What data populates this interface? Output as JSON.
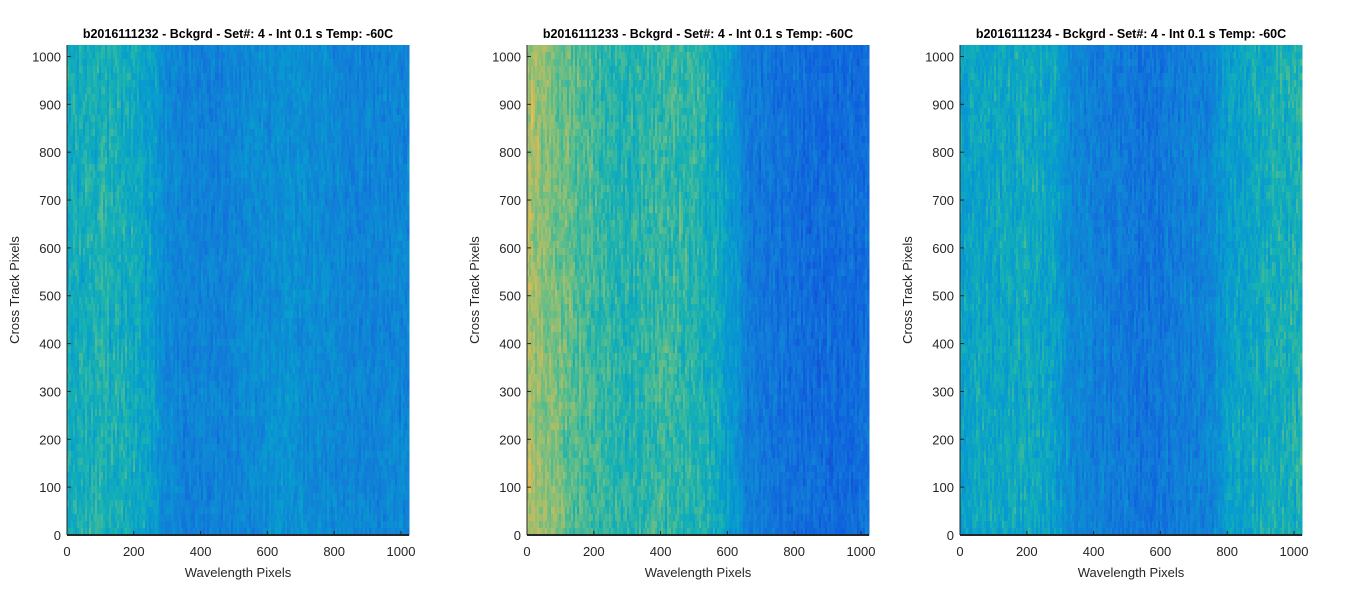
{
  "chart_data": [
    {
      "type": "heatmap",
      "title": "b2016111232 - Bckgrd - Set#: 4 - Int 0.1 s Temp: -60C",
      "xlabel": "Wavelength Pixels",
      "ylabel": "Cross Track Pixels",
      "xlim": [
        0,
        1024
      ],
      "ylim": [
        0,
        1024
      ],
      "xticks": [
        0,
        200,
        400,
        600,
        800,
        1000
      ],
      "yticks": [
        0,
        100,
        200,
        300,
        400,
        500,
        600,
        700,
        800,
        900,
        1000
      ],
      "colormap": "parula",
      "column_profile": {
        "x": [
          0,
          100,
          200,
          260,
          300,
          350,
          450,
          550,
          650,
          750,
          850,
          950,
          1024
        ],
        "level": [
          0.52,
          0.55,
          0.52,
          0.45,
          0.36,
          0.32,
          0.32,
          0.36,
          0.4,
          0.37,
          0.33,
          0.34,
          0.34
        ]
      },
      "noise": 0.07
    },
    {
      "type": "heatmap",
      "title": "b2016111233 - Bckgrd - Set#: 4 - Int 0.1 s Temp: -60C",
      "xlabel": "Wavelength Pixels",
      "ylabel": "Cross Track Pixels",
      "xlim": [
        0,
        1024
      ],
      "ylim": [
        0,
        1024
      ],
      "xticks": [
        0,
        200,
        400,
        600,
        800,
        1000
      ],
      "yticks": [
        0,
        100,
        200,
        300,
        400,
        500,
        600,
        700,
        800,
        900,
        1000
      ],
      "colormap": "parula",
      "column_profile": {
        "x": [
          0,
          30,
          100,
          200,
          300,
          400,
          500,
          580,
          630,
          660,
          750,
          850,
          950,
          1024
        ],
        "level": [
          0.78,
          0.74,
          0.68,
          0.6,
          0.56,
          0.6,
          0.58,
          0.5,
          0.4,
          0.3,
          0.26,
          0.22,
          0.22,
          0.24
        ]
      },
      "noise": 0.07
    },
    {
      "type": "heatmap",
      "title": "b2016111234 - Bckgrd - Set#: 4 - Int 0.1 s Temp: -60C",
      "xlabel": "Wavelength Pixels",
      "ylabel": "Cross Track Pixels",
      "xlim": [
        0,
        1024
      ],
      "ylim": [
        0,
        1024
      ],
      "xticks": [
        0,
        200,
        400,
        600,
        800,
        1000
      ],
      "yticks": [
        0,
        100,
        200,
        300,
        400,
        500,
        600,
        700,
        800,
        900,
        1000
      ],
      "colormap": "parula",
      "column_profile": {
        "x": [
          0,
          100,
          200,
          280,
          330,
          400,
          500,
          560,
          650,
          750,
          800,
          900,
          1000,
          1024
        ],
        "level": [
          0.48,
          0.5,
          0.52,
          0.48,
          0.36,
          0.32,
          0.28,
          0.26,
          0.3,
          0.34,
          0.46,
          0.52,
          0.55,
          0.56
        ]
      },
      "noise": 0.07
    }
  ]
}
